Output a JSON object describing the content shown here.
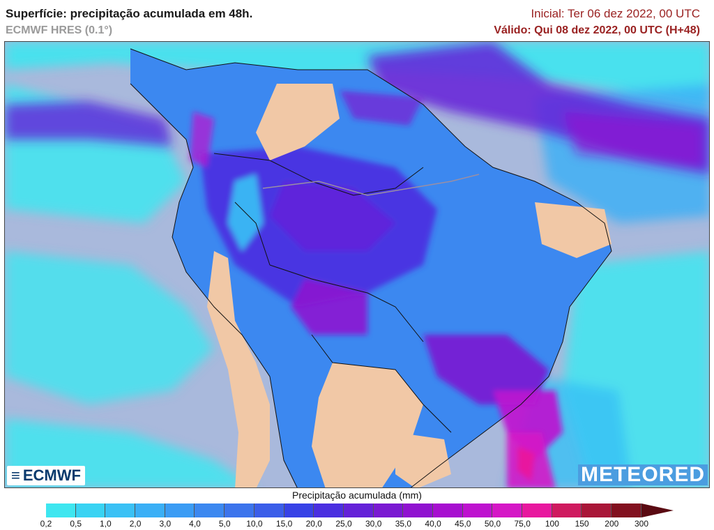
{
  "header": {
    "title": "Superfície: precipitação acumulada em 48h.",
    "model": "ECMWF HRES (0.1°)",
    "initial": "Inicial: Ter 06 dez 2022, 00 UTC",
    "valid": "Válido: Qui 08 dez 2022, 00 UTC (H+48)"
  },
  "logos": {
    "ecmwf": "ECMWF",
    "meteored": "METEORED"
  },
  "legend": {
    "title": "Precipitação acumulada (mm)",
    "ticks": [
      "0,2",
      "0,5",
      "1,0",
      "2,0",
      "3,0",
      "4,0",
      "5,0",
      "10,0",
      "15,0",
      "20,0",
      "25,0",
      "30,0",
      "35,0",
      "40,0",
      "45,0",
      "50,0",
      "75,0",
      "100",
      "150",
      "200",
      "300"
    ],
    "colors": [
      "#3ee6f0",
      "#39d3f3",
      "#3ac1f5",
      "#3aaff6",
      "#3b9cf4",
      "#3c88f0",
      "#3c74ec",
      "#3b5ee9",
      "#3742e6",
      "#4a2fe0",
      "#6421d8",
      "#7a19d2",
      "#9012d0",
      "#a70fd0",
      "#be12cf",
      "#d517c6",
      "#e8189f",
      "#cf1a5f",
      "#a91638",
      "#82101f"
    ],
    "arrow_color": "#5a0a12"
  },
  "map_colors": {
    "ocean_background": "#a9b9dc",
    "dry_land": "#f1c8a6",
    "border_lines": "#111111",
    "rivers": "#9a8fa4"
  }
}
